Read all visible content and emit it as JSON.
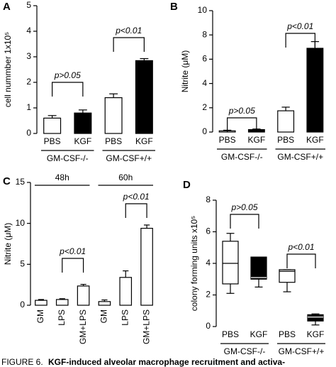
{
  "caption_label": "FIGURE 6.",
  "caption_text": "KGF-induced alveolar macrophage recruitment and activa-",
  "chart_data": [
    {
      "type": "bar",
      "panel": "A",
      "ylabel": "cell nummber 1x10⁵",
      "categories": [
        "PBS",
        "KGF",
        "PBS",
        "KGF"
      ],
      "groups": [
        "GM-CSF-/-",
        "GM-CSF+/+"
      ],
      "group_position": "bottom",
      "values": [
        0.6,
        0.8,
        1.4,
        2.85
      ],
      "errors": [
        0.1,
        0.12,
        0.15,
        0.08
      ],
      "colors": [
        "#ffffff",
        "#000000",
        "#ffffff",
        "#000000"
      ],
      "annotations": [
        "p>0.05",
        "p<0.01"
      ],
      "ylim": [
        0,
        5
      ],
      "yticks": [
        0,
        1,
        2,
        3,
        4,
        5
      ]
    },
    {
      "type": "bar",
      "panel": "B",
      "ylabel": "Nitrite (μM)",
      "categories": [
        "PBS",
        "KGF",
        "PBS",
        "KGF"
      ],
      "groups": [
        "GM-CSF-/-",
        "GM-CSF+/+"
      ],
      "group_position": "bottom",
      "values": [
        0.1,
        0.2,
        1.75,
        6.9
      ],
      "errors": [
        0.05,
        0.05,
        0.3,
        0.55
      ],
      "colors": [
        "#ffffff",
        "#000000",
        "#ffffff",
        "#000000"
      ],
      "annotations": [
        "p>0.05",
        "p<0.01"
      ],
      "ylim": [
        0,
        10
      ],
      "yticks": [
        0,
        2,
        4,
        6,
        8,
        10
      ]
    },
    {
      "type": "bar",
      "panel": "C",
      "ylabel": "Nitrite (μM)",
      "categories": [
        "GM",
        "LPS",
        "GM+LPS",
        "GM",
        "LPS",
        "GM+LPS"
      ],
      "groups": [
        "48h",
        "60h"
      ],
      "group_position": "top",
      "values": [
        0.6,
        0.7,
        2.35,
        0.45,
        3.4,
        9.4
      ],
      "errors": [
        0.1,
        0.1,
        0.2,
        0.2,
        0.8,
        0.4
      ],
      "colors": [
        "#ffffff",
        "#ffffff",
        "#ffffff",
        "#ffffff",
        "#ffffff",
        "#ffffff"
      ],
      "annotations": [
        "p<0.01",
        "p<0.01"
      ],
      "ylim": [
        0,
        15
      ],
      "yticks": [
        0,
        5,
        10,
        15
      ]
    },
    {
      "type": "box",
      "panel": "D",
      "ylabel": "colony forming units x10⁵",
      "categories": [
        "PBS",
        "KGF",
        "PBS",
        "KGF"
      ],
      "groups": [
        "GM-CSF-/-",
        "GM-CSF+/+"
      ],
      "group_position": "bottom",
      "min": [
        2.1,
        2.5,
        2.2,
        0.1
      ],
      "q1": [
        2.7,
        3.0,
        2.8,
        0.35
      ],
      "median": [
        4.0,
        3.1,
        3.5,
        0.6
      ],
      "q3": [
        5.4,
        4.4,
        3.6,
        0.75
      ],
      "max": [
        5.9,
        4.4,
        3.6,
        0.8
      ],
      "colors": [
        "#ffffff",
        "#000000",
        "#ffffff",
        "#000000"
      ],
      "annotations": [
        "p>0.05",
        "p<0.01"
      ],
      "ylim": [
        0,
        8
      ],
      "yticks": [
        0,
        2,
        4,
        6,
        8
      ]
    }
  ]
}
